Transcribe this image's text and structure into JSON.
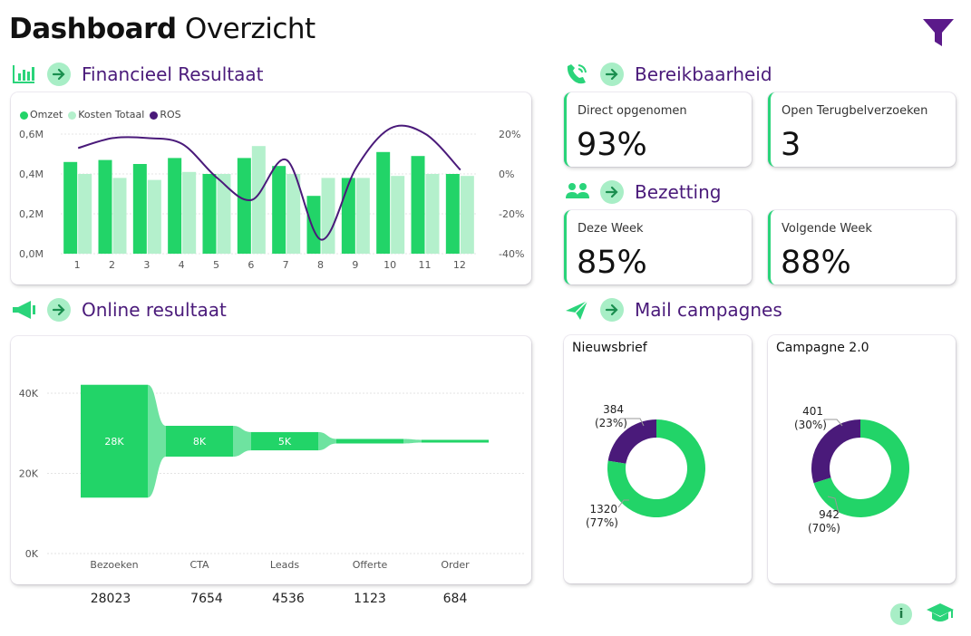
{
  "header": {
    "title_bold": "Dashboard",
    "title_light": "Overzicht"
  },
  "colors": {
    "green": "#22d468",
    "light_green": "#b4f0cc",
    "purple": "#4a1a7a",
    "accent_bg": "#a8eec6"
  },
  "sections": {
    "financieel": "Financieel Resultaat",
    "online": "Online resultaat",
    "bereikbaarheid": "Bereikbaarheid",
    "bezetting": "Bezetting",
    "mail": "Mail campagnes"
  },
  "kpis": {
    "direct": {
      "label": "Direct opgenomen",
      "value": "93%"
    },
    "open": {
      "label": "Open Terugbelverzoeken",
      "value": "3"
    },
    "deze_week": {
      "label": "Deze Week",
      "value": "85%"
    },
    "volgende_week": {
      "label": "Volgende Week",
      "value": "88%"
    }
  },
  "chart_data": [
    {
      "type": "bar",
      "title": "Financieel Resultaat",
      "legend": [
        "Omzet",
        "Kosten Totaal",
        "ROS"
      ],
      "categories": [
        "1",
        "2",
        "3",
        "4",
        "5",
        "6",
        "7",
        "8",
        "9",
        "10",
        "11",
        "12"
      ],
      "series": [
        {
          "name": "Omzet",
          "values": [
            0.46,
            0.47,
            0.45,
            0.48,
            0.4,
            0.48,
            0.44,
            0.29,
            0.38,
            0.51,
            0.49,
            0.4
          ]
        },
        {
          "name": "Kosten Totaal",
          "values": [
            0.4,
            0.38,
            0.37,
            0.41,
            0.4,
            0.54,
            0.4,
            0.38,
            0.38,
            0.39,
            0.4,
            0.39
          ]
        },
        {
          "name": "ROS",
          "axis": "right",
          "values": [
            13,
            18,
            18,
            15,
            -2,
            -13,
            7,
            -33,
            3,
            23,
            20,
            2
          ]
        }
      ],
      "yticks_left": [
        "0,6M",
        "0,4M",
        "0,2M",
        "0,0M"
      ],
      "ylim_left": [
        0,
        0.6
      ],
      "yticks_right": [
        "20%",
        "0%",
        "-20%",
        "-40%"
      ],
      "ylim_right": [
        -40,
        20
      ]
    },
    {
      "type": "bar",
      "title": "Online resultaat",
      "categories": [
        "Bezoeken",
        "CTA",
        "Leads",
        "Offerte",
        "Order"
      ],
      "values": [
        28023,
        7654,
        4536,
        1123,
        684
      ],
      "data_labels": [
        "28K",
        "8K",
        "5K",
        "",
        ""
      ],
      "bottom_values": [
        "28023",
        "7654",
        "4536",
        "1123",
        "684"
      ],
      "yticks": [
        "40K",
        "20K",
        "0K"
      ],
      "ylim": [
        0,
        45000
      ]
    },
    {
      "type": "pie",
      "title": "Nieuwsbrief",
      "slices": [
        {
          "label": "384",
          "pct": "(23%)",
          "value": 384
        },
        {
          "label": "1320",
          "pct": "(77%)",
          "value": 1320
        }
      ]
    },
    {
      "type": "pie",
      "title": "Campagne 2.0",
      "slices": [
        {
          "label": "401",
          "pct": "(30%)",
          "value": 401
        },
        {
          "label": "942",
          "pct": "(70%)",
          "value": 942
        }
      ]
    }
  ]
}
